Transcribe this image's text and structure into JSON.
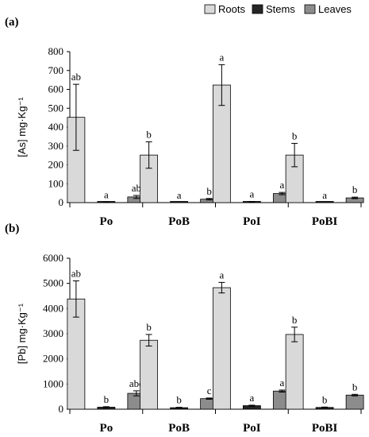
{
  "legend": [
    {
      "label": "Roots",
      "color": "#d9d9d9"
    },
    {
      "label": "Stems",
      "color": "#262626"
    },
    {
      "label": "Leaves",
      "color": "#8c8c8c"
    }
  ],
  "chart_data": [
    {
      "type": "bar",
      "panel_label": "(a)",
      "ylabel": "[As] mg·Kg⁻¹",
      "ylim": [
        0,
        800
      ],
      "yticks": [
        0,
        100,
        200,
        300,
        400,
        500,
        600,
        700,
        800
      ],
      "categories": [
        "Po",
        "PoB",
        "PoI",
        "PoBI"
      ],
      "series": [
        {
          "name": "Roots",
          "color": "#d9d9d9",
          "values": [
            452,
            252,
            623,
            252
          ],
          "errors": [
            175,
            70,
            108,
            62
          ],
          "letters": [
            "ab",
            "b",
            "a",
            "b"
          ]
        },
        {
          "name": "Stems",
          "color": "#262626",
          "values": [
            2,
            1,
            4,
            1
          ],
          "errors": [
            1,
            0,
            2,
            0
          ],
          "letters": [
            "a",
            "a",
            "a",
            "a"
          ]
        },
        {
          "name": "Leaves",
          "color": "#8c8c8c",
          "values": [
            30,
            18,
            48,
            25
          ],
          "errors": [
            8,
            4,
            6,
            4
          ],
          "letters": [
            "ab",
            "b",
            "a",
            "b"
          ]
        }
      ],
      "grid": false,
      "legend_position": "top-right"
    },
    {
      "type": "bar",
      "panel_label": "(b)",
      "ylabel": "[Pb] mg·Kg⁻¹",
      "ylim": [
        0,
        6000
      ],
      "yticks": [
        0,
        1000,
        2000,
        3000,
        4000,
        5000,
        6000
      ],
      "categories": [
        "Po",
        "PoB",
        "PoI",
        "PoBI"
      ],
      "series": [
        {
          "name": "Roots",
          "color": "#d9d9d9",
          "values": [
            4380,
            2740,
            4830,
            2970
          ],
          "errors": [
            720,
            230,
            210,
            290
          ],
          "letters": [
            "ab",
            "b",
            "a",
            "b"
          ]
        },
        {
          "name": "Stems",
          "color": "#262626",
          "values": [
            80,
            60,
            140,
            70
          ],
          "errors": [
            20,
            15,
            20,
            15
          ],
          "letters": [
            "b",
            "b",
            "a",
            "b"
          ]
        },
        {
          "name": "Leaves",
          "color": "#8c8c8c",
          "values": [
            630,
            420,
            720,
            560
          ],
          "errors": [
            100,
            25,
            40,
            30
          ],
          "letters": [
            "abc",
            "c",
            "a",
            "b"
          ]
        }
      ],
      "grid": false
    }
  ]
}
